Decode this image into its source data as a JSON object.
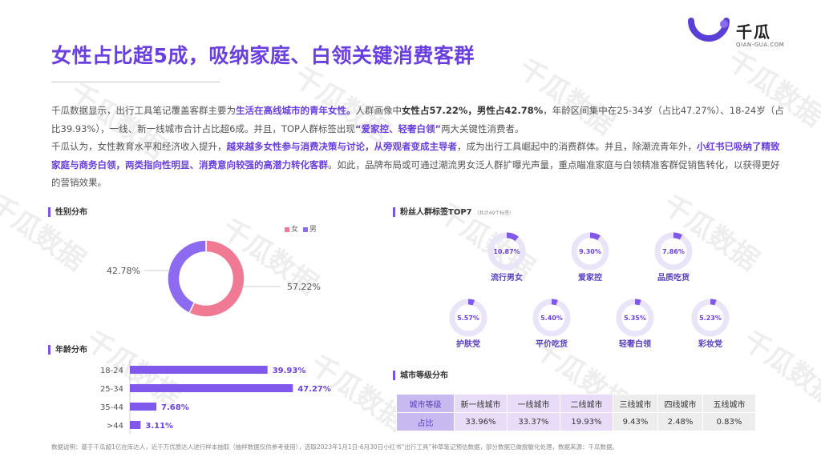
{
  "title": "女性占比超5成，吸纳家庭、白领关键消费客群",
  "logo": {
    "cn": "千瓜",
    "en": "QIAN-GUA.COM"
  },
  "paragraphs": [
    [
      {
        "t": "千瓜数据显示，出行工具笔记覆盖客群主要为",
        "s": ""
      },
      {
        "t": "生活在高线城市的青年女性。",
        "s": "hl"
      },
      {
        "t": "人群画像中",
        "s": ""
      },
      {
        "t": "女性占57.22%，男性占42.78%",
        "s": "bk"
      },
      {
        "t": "，年龄区间集中在25-34岁（占比47.27%）、18-24岁（占比39.93%），一线、新一线城市合计占比超6成。并且，TOP人群标签出现",
        "s": ""
      },
      {
        "t": "“爱家控、轻奢白领”",
        "s": "hl"
      },
      {
        "t": "两大关键性消费者。",
        "s": ""
      }
    ],
    [
      {
        "t": "千瓜认为，女性教育水平和经济收入提升，",
        "s": ""
      },
      {
        "t": "越来越多女性参与消费决策与讨论，从旁观者变成主导者",
        "s": "hl"
      },
      {
        "t": "，成为出行工具崛起中的消费群体。并且，除潮流青年外，",
        "s": ""
      },
      {
        "t": "小红书已吸纳了精致家庭与商务白领，两类指向性明显、消费意向较强的高潜力转化客群",
        "s": "hl"
      },
      {
        "t": "。如此，品牌布局或可通过潮流男女泛人群扩曝光声量，重点瞄准家庭与白领精准客群促销售转化，以获得更好的营销效果。",
        "s": ""
      }
    ]
  ],
  "gender": {
    "section_title": "性别分布",
    "legend": [
      "女",
      "男"
    ],
    "chart_data": {
      "type": "pie",
      "labels": [
        "女",
        "男"
      ],
      "values": [
        57.22,
        42.78
      ],
      "value_labels": [
        "57.22%",
        "42.78%"
      ],
      "colors": [
        "#f07a94",
        "#8d6bf0"
      ]
    }
  },
  "age": {
    "section_title": "年龄分布",
    "chart_data": {
      "type": "bar",
      "categories": [
        "18-24",
        "25-34",
        "35-44",
        ">44"
      ],
      "values": [
        39.93,
        47.27,
        7.68,
        3.11
      ],
      "value_labels": [
        "39.93%",
        "47.27%",
        "7.68%",
        "3.11%"
      ],
      "color": "#8058ec"
    }
  },
  "tags": {
    "section_title": "粉丝人群标签TOP7",
    "section_sub": "（共计49个标签）",
    "chart_data": {
      "type": "pie",
      "labels": [
        "流行男女",
        "爱家控",
        "品质吃货",
        "护肤党",
        "平价吃货",
        "轻奢白领",
        "彩妆党"
      ],
      "values": [
        10.87,
        9.3,
        7.86,
        5.57,
        5.4,
        5.35,
        5.23
      ],
      "value_labels": [
        "10.87%",
        "9.30%",
        "7.86%",
        "5.57%",
        "5.40%",
        "5.35%",
        "5.23%"
      ],
      "color": "#8058ec",
      "track_color": "#e9e4f8"
    }
  },
  "city": {
    "section_title": "城市等级分布",
    "header_label": "城市等级",
    "row_label": "占比",
    "levels": [
      "新一线城市",
      "一线城市",
      "二线城市",
      "三线城市",
      "四线城市",
      "五线城市"
    ],
    "values": [
      "33.96%",
      "33.37%",
      "19.93%",
      "9.43%",
      "2.48%",
      "0.83%"
    ],
    "chart_data": {
      "type": "table",
      "categories": [
        "新一线城市",
        "一线城市",
        "二线城市",
        "三线城市",
        "四线城市",
        "五线城市"
      ],
      "values": [
        33.96,
        33.37,
        19.93,
        9.43,
        2.48,
        0.83
      ]
    }
  },
  "footnote": "数据说明：基于千瓜超1亿在库达人，近千万优质达人进行样本抽取（抽样数据仅供参考使用），选取2023年1月1日-6月30日小红书“出行工具”种草笔记预估数据，部分数据已做脱敏化处理，数据来源：千瓜数据。",
  "watermark_text": "千瓜数据"
}
